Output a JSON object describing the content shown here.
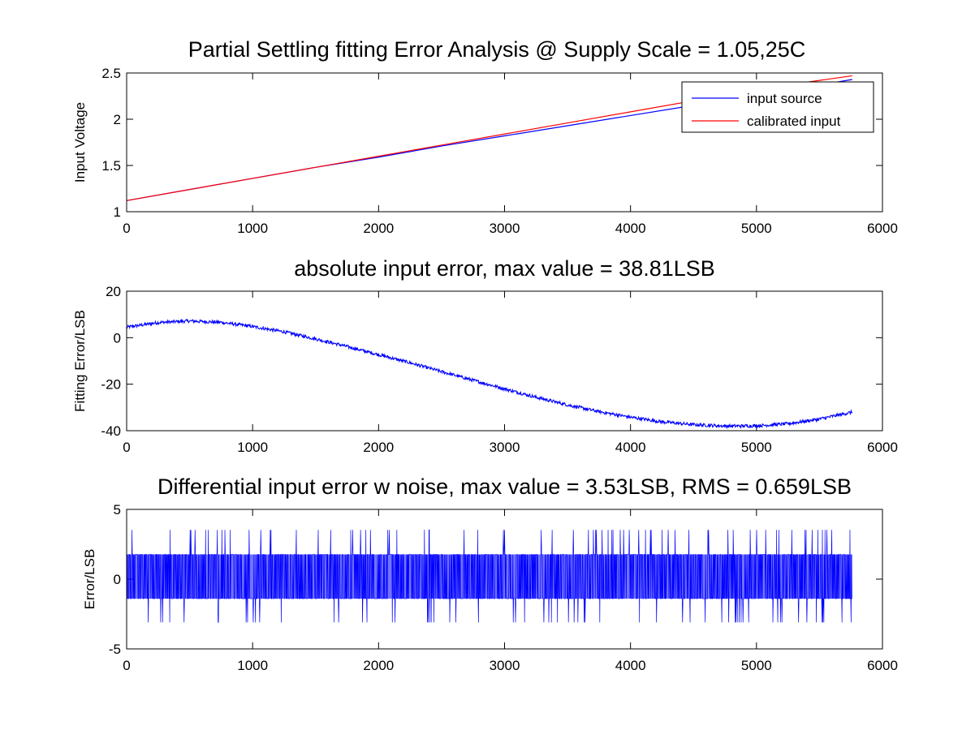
{
  "figure_title": "Partial Settling fitting Error Analysis @ Supply Scale = 1.05,25C",
  "chart_data": [
    {
      "type": "line",
      "title": "",
      "xlabel": "",
      "ylabel": "Input Voltage",
      "xlim": [
        0,
        6000
      ],
      "ylim": [
        1,
        2.5
      ],
      "xticks": [
        "0",
        "1000",
        "2000",
        "3000",
        "4000",
        "5000",
        "6000"
      ],
      "yticks": [
        "1",
        "1.5",
        "2",
        "2.5"
      ],
      "legend_position": "top-right",
      "series": [
        {
          "name": "input source",
          "color": "#0000ff",
          "x": [
            0,
            500,
            1000,
            1500,
            2000,
            2500,
            3000,
            3500,
            4000,
            4500,
            5000,
            5500,
            5760
          ],
          "values": [
            1.12,
            1.24,
            1.36,
            1.48,
            1.59,
            1.71,
            1.82,
            1.93,
            2.04,
            2.15,
            2.26,
            2.37,
            2.43
          ]
        },
        {
          "name": "calibrated input",
          "color": "#ff0000",
          "x": [
            0,
            500,
            1000,
            1500,
            2000,
            2500,
            3000,
            3500,
            4000,
            4500,
            5000,
            5500,
            5760
          ],
          "values": [
            1.12,
            1.24,
            1.36,
            1.48,
            1.6,
            1.72,
            1.84,
            1.96,
            2.08,
            2.2,
            2.32,
            2.42,
            2.47
          ]
        }
      ]
    },
    {
      "type": "line",
      "title": "absolute input error, max value = 38.81LSB",
      "xlabel": "",
      "ylabel": "Fitting Error/LSB",
      "xlim": [
        0,
        6000
      ],
      "ylim": [
        -40,
        20
      ],
      "xticks": [
        "0",
        "1000",
        "2000",
        "3000",
        "4000",
        "5000",
        "6000"
      ],
      "yticks": [
        "-40",
        "-20",
        "0",
        "20"
      ],
      "series": [
        {
          "color": "#0000ff",
          "x": [
            0,
            250,
            500,
            750,
            1000,
            1250,
            1500,
            1750,
            2000,
            2250,
            2500,
            2750,
            3000,
            3250,
            3500,
            3750,
            4000,
            4250,
            4500,
            4750,
            5000,
            5250,
            5500,
            5760
          ],
          "values": [
            4.5,
            6.5,
            7.2,
            6.6,
            4.8,
            2.5,
            -0.5,
            -3.8,
            -7.3,
            -10.8,
            -14.6,
            -18.3,
            -22.0,
            -25.6,
            -28.9,
            -31.8,
            -34.2,
            -36.2,
            -37.4,
            -38.0,
            -37.9,
            -37.0,
            -35.0,
            -32.0
          ]
        }
      ]
    },
    {
      "type": "line",
      "title": "Differential input error w noise, max value = 3.53LSB, RMS = 0.659LSB",
      "xlabel": "",
      "ylabel": "Error/LSB",
      "xlim": [
        0,
        6000
      ],
      "ylim": [
        -5,
        5
      ],
      "xticks": [
        "0",
        "1000",
        "2000",
        "3000",
        "4000",
        "5000",
        "6000"
      ],
      "yticks": [
        "-5",
        "0",
        "5"
      ],
      "series": [
        {
          "color": "#0000ff",
          "x_range": [
            0,
            5760
          ],
          "levels": [
            1.77,
            0,
            -1.4
          ],
          "extreme_max": 3.53,
          "extreme_min": -3.1
        }
      ]
    }
  ]
}
